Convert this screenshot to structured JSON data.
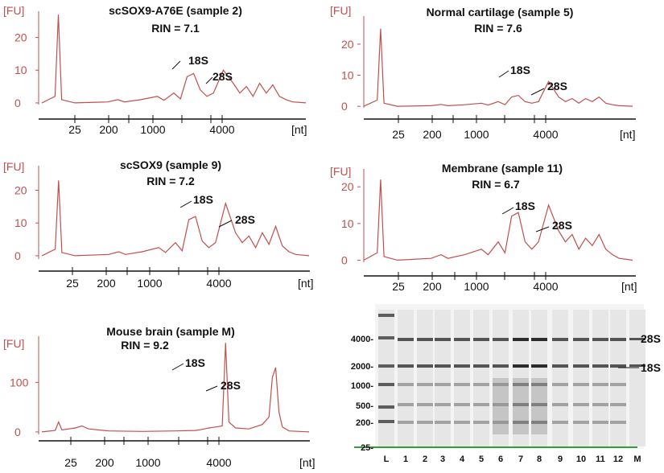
{
  "chart_data": [
    {
      "type": "line",
      "title": "scSOX9-A76E (sample 2)",
      "subtitle": "RIN = 7.1",
      "ylabel": "[FU]",
      "xunit": "[nt]",
      "yticks": [
        0,
        10,
        20
      ],
      "ylim": [
        -1,
        28
      ],
      "xticks": [
        "25",
        "200",
        "1000",
        "4000"
      ],
      "peaks": [
        {
          "label": "18S"
        },
        {
          "label": "28S"
        }
      ],
      "x": [
        20,
        24,
        25,
        26,
        30,
        40,
        43,
        45,
        50,
        55,
        57,
        60,
        62,
        64,
        66,
        68,
        70,
        72,
        75,
        78,
        80,
        82,
        84,
        86,
        88,
        90,
        92,
        94,
        96,
        100
      ],
      "values": [
        0,
        2,
        27,
        1,
        0,
        0.3,
        1,
        0.3,
        1,
        2,
        0.8,
        3,
        1.2,
        8,
        9,
        4,
        2,
        3,
        10,
        6,
        3,
        5,
        2,
        6,
        3,
        5.5,
        2,
        1,
        0.3,
        0
      ]
    },
    {
      "type": "line",
      "title": "Normal cartilage (sample 5)",
      "subtitle": "RIN = 7.6",
      "ylabel": "[FU]",
      "xunit": "[nt]",
      "yticks": [
        0,
        10,
        20
      ],
      "ylim": [
        -1,
        28
      ],
      "xticks": [
        "25",
        "200",
        "1000",
        "4000"
      ],
      "peaks": [
        {
          "label": "18S"
        },
        {
          "label": "28S"
        }
      ],
      "x": [
        20,
        24,
        25,
        26,
        30,
        40,
        43,
        45,
        50,
        55,
        57,
        60,
        62,
        64,
        66,
        68,
        70,
        72,
        75,
        78,
        80,
        82,
        84,
        86,
        88,
        90,
        92,
        94,
        96,
        100
      ],
      "values": [
        0,
        2,
        25,
        1,
        0,
        0.2,
        0.6,
        0.2,
        0.5,
        1,
        0.4,
        1.5,
        0.5,
        3,
        3.5,
        1.5,
        1,
        1.5,
        8,
        3,
        1.5,
        2.5,
        1,
        2.5,
        1.5,
        3,
        1,
        0.5,
        0.2,
        0
      ]
    },
    {
      "type": "line",
      "title": "scSOX9 (sample 9)",
      "subtitle": "RIN = 7.2",
      "ylabel": "[FU]",
      "xunit": "[nt]",
      "yticks": [
        0,
        10,
        20
      ],
      "ylim": [
        -1,
        27
      ],
      "xticks": [
        "25",
        "200",
        "1000",
        "4000"
      ],
      "peaks": [
        {
          "label": "18S"
        },
        {
          "label": "28S"
        }
      ],
      "x": [
        20,
        24,
        25,
        26,
        30,
        40,
        43,
        45,
        50,
        55,
        57,
        60,
        62,
        64,
        66,
        68,
        70,
        72,
        75,
        78,
        80,
        82,
        84,
        86,
        88,
        90,
        92,
        94,
        96,
        100
      ],
      "values": [
        0,
        2,
        23,
        1,
        0,
        0.4,
        1.2,
        0.4,
        1.2,
        2.5,
        1,
        4,
        1.5,
        11,
        12,
        4.5,
        2.5,
        4,
        16,
        7,
        4,
        6,
        2.5,
        7,
        3.5,
        9,
        3,
        1.2,
        0.4,
        0
      ]
    },
    {
      "type": "line",
      "title": "Membrane (sample 11)",
      "subtitle": "RIN = 6.7",
      "ylabel": "[FU]",
      "xunit": "[nt]",
      "yticks": [
        0,
        10,
        20
      ],
      "ylim": [
        -1,
        24
      ],
      "xticks": [
        "25",
        "200",
        "1000",
        "4000"
      ],
      "peaks": [
        {
          "label": "18S"
        },
        {
          "label": "28S"
        }
      ],
      "x": [
        20,
        24,
        25,
        26,
        30,
        40,
        43,
        45,
        50,
        55,
        57,
        60,
        62,
        64,
        66,
        68,
        70,
        72,
        75,
        78,
        80,
        82,
        84,
        86,
        88,
        90,
        92,
        94,
        96,
        100
      ],
      "values": [
        0,
        2,
        22,
        1,
        0,
        0.5,
        1.5,
        0.5,
        1.5,
        3,
        1.5,
        5,
        2,
        12,
        13,
        5,
        3,
        5,
        15,
        8,
        5,
        7,
        3,
        6,
        4,
        7,
        3,
        1.5,
        0.5,
        0
      ]
    },
    {
      "type": "line",
      "title": "Mouse brain (sample M)",
      "subtitle": "RIN = 9.2",
      "ylabel": "[FU]",
      "xunit": "[nt]",
      "yticks": [
        0,
        100
      ],
      "ylim": [
        -5,
        190
      ],
      "xticks": [
        "25",
        "200",
        "1000",
        "4000"
      ],
      "peaks": [
        {
          "label": "18S"
        },
        {
          "label": "28S"
        }
      ],
      "x": [
        20,
        24,
        25,
        26,
        30,
        32,
        34,
        40,
        50,
        60,
        66,
        68,
        70,
        72,
        74,
        75,
        76,
        78,
        82,
        86,
        88,
        89,
        90,
        91,
        92,
        94,
        100
      ],
      "values": [
        0,
        3,
        20,
        4,
        8,
        12,
        6,
        2,
        1,
        2,
        3,
        5,
        8,
        10,
        12,
        180,
        20,
        8,
        6,
        15,
        30,
        110,
        130,
        40,
        10,
        2,
        0
      ]
    },
    {
      "type": "heatmap",
      "lanes": [
        "L",
        "1",
        "2",
        "3",
        "4",
        "5",
        "6",
        "7",
        "8",
        "9",
        "10",
        "11",
        "12",
        "M"
      ],
      "ladder_labels": [
        "4000-",
        "2000-",
        "1000-",
        "500-",
        "200-",
        "25-"
      ],
      "band_labels": [
        "28S",
        "18S"
      ]
    }
  ]
}
